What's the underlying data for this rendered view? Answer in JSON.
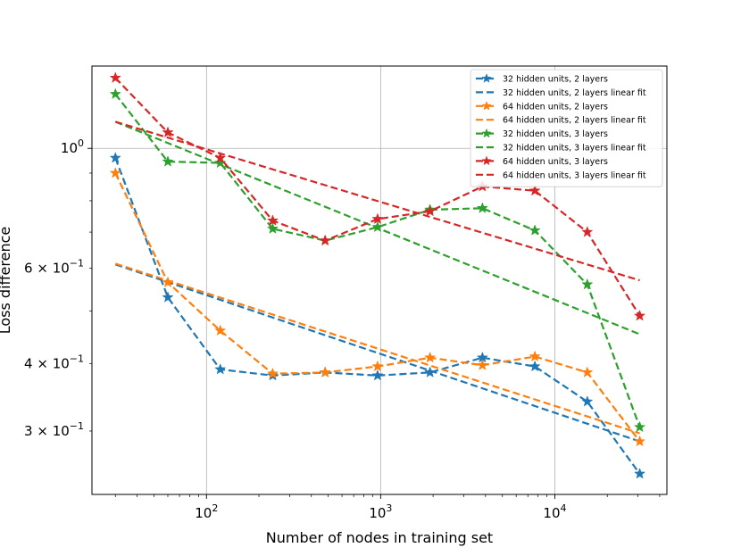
{
  "chart_data": {
    "type": "line",
    "title": "",
    "xlabel": "Number of nodes in training set",
    "ylabel": "Loss difference",
    "xscale": "log",
    "yscale": "log",
    "xlim": [
      22,
      44000
    ],
    "ylim": [
      0.229,
      1.42
    ],
    "grid": true,
    "legend_position": "top-right",
    "x_ticks": [
      {
        "value": 100,
        "base": "10",
        "exp": "2"
      },
      {
        "value": 1000,
        "base": "10",
        "exp": "3"
      },
      {
        "value": 10000,
        "base": "10",
        "exp": "4"
      }
    ],
    "y_ticks": [
      {
        "value": 1.0,
        "mant": "",
        "base": "10",
        "exp": "0"
      },
      {
        "value": 0.6,
        "mant": "6 × ",
        "base": "10",
        "exp": "−1"
      },
      {
        "value": 0.4,
        "mant": "4 × ",
        "base": "10",
        "exp": "−1"
      },
      {
        "value": 0.3,
        "mant": "3 × ",
        "base": "10",
        "exp": "−1"
      }
    ],
    "x": [
      30,
      60,
      120,
      240,
      480,
      960,
      1920,
      3840,
      7680,
      15360,
      30720
    ],
    "series": [
      {
        "name": "32 hidden units, 2 layers",
        "color": "#1f77b4",
        "values": [
          0.96,
          0.53,
          0.39,
          0.38,
          0.385,
          0.38,
          0.385,
          0.41,
          0.395,
          0.34,
          0.25
        ],
        "fit_name": "32 hidden units, 2 layers linear fit",
        "fit": [
          0.61,
          0.287
        ]
      },
      {
        "name": "64 hidden units, 2 layers",
        "color": "#ff7f0e",
        "values": [
          0.9,
          0.565,
          0.46,
          0.383,
          0.385,
          0.395,
          0.41,
          0.397,
          0.412,
          0.385,
          0.287
        ],
        "fit_name": "64 hidden units, 2 layers linear fit",
        "fit": [
          0.612,
          0.297
        ]
      },
      {
        "name": "32 hidden units, 3 layers",
        "color": "#2ca02c",
        "values": [
          1.26,
          0.945,
          0.94,
          0.71,
          0.675,
          0.715,
          0.77,
          0.775,
          0.705,
          0.56,
          0.305
        ],
        "fit_name": "32 hidden units, 3 layers linear fit",
        "fit": [
          1.12,
          0.453
        ]
      },
      {
        "name": "64 hidden units, 3 layers",
        "color": "#d62728",
        "values": [
          1.35,
          1.07,
          0.96,
          0.735,
          0.675,
          0.74,
          0.765,
          0.85,
          0.835,
          0.7,
          0.49
        ],
        "fit_name": "64 hidden units, 3 layers linear fit",
        "fit": [
          1.12,
          0.57
        ]
      }
    ]
  }
}
